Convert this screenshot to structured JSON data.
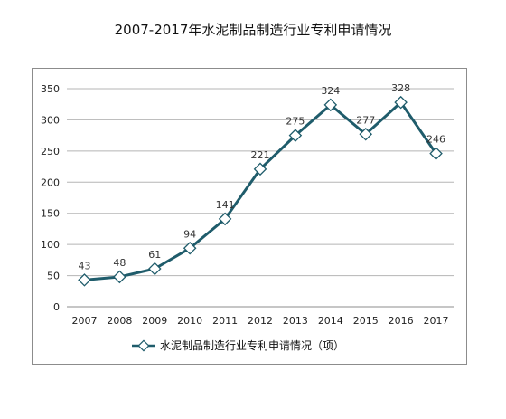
{
  "chart_data": {
    "type": "line",
    "title": "2007-2017年水泥制品制造行业专利申请情况",
    "categories": [
      "2007",
      "2008",
      "2009",
      "2010",
      "2011",
      "2012",
      "2013",
      "2014",
      "2015",
      "2016",
      "2017"
    ],
    "series": [
      {
        "name": "水泥制品制造行业专利申请情况（项）",
        "values": [
          43,
          48,
          61,
          94,
          141,
          221,
          275,
          324,
          277,
          328,
          246
        ],
        "color": "#1f5c6b"
      }
    ],
    "ylim": [
      0,
      350
    ],
    "yticks": [
      "0",
      "50",
      "100",
      "150",
      "200",
      "250",
      "300",
      "350"
    ],
    "grid": true,
    "legend": "bottom"
  }
}
